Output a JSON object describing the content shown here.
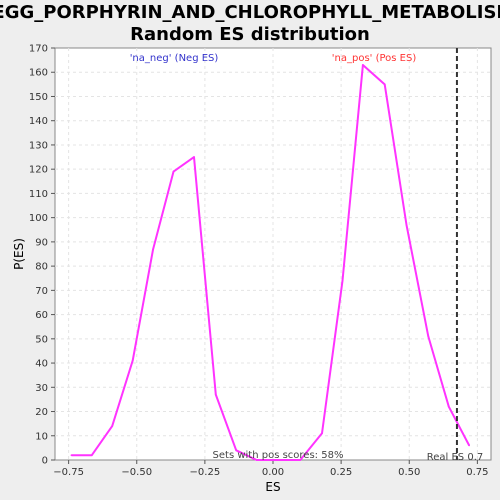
{
  "chart_data": {
    "type": "line",
    "title_line1": "KEGG_PORPHYRIN_AND_CHLOROPHYLL_METABOLISM:",
    "title_line2": "Random ES distribution",
    "xlabel": "ES",
    "ylabel": "P(ES)",
    "xlim": [
      -0.8,
      0.8
    ],
    "ylim": [
      0,
      170
    ],
    "xticks": [
      -0.75,
      -0.5,
      -0.25,
      0.0,
      0.25,
      0.5,
      0.75
    ],
    "xtick_labels": [
      "−0.75",
      "−0.50",
      "−0.25",
      "0.00",
      "0.25",
      "0.50",
      "0.75"
    ],
    "yticks": [
      0,
      10,
      20,
      30,
      40,
      50,
      60,
      70,
      80,
      90,
      100,
      110,
      120,
      130,
      140,
      150,
      160,
      170
    ],
    "series": [
      {
        "name": "P(ES)",
        "color": "#ff33ff",
        "x": [
          -0.74,
          -0.665,
          -0.59,
          -0.515,
          -0.44,
          -0.365,
          -0.29,
          -0.21,
          -0.135,
          -0.06,
          0.02,
          0.1,
          0.18,
          0.255,
          0.33,
          0.41,
          0.49,
          0.57,
          0.645,
          0.72
        ],
        "y": [
          2,
          2,
          14,
          41,
          87,
          119,
          125,
          27,
          4,
          0,
          0,
          0,
          11,
          74,
          163,
          155,
          97,
          51,
          22,
          6
        ]
      }
    ],
    "legend": {
      "neg_label": "'na_neg' (Neg ES)",
      "neg_color": "#3333cc",
      "pos_label": "'na_pos' (Pos ES)",
      "pos_color": "#ff3333"
    },
    "real_es": {
      "value": 0.675,
      "label": "Real ES 0.7",
      "color": "#333333"
    },
    "annotation": "Sets with pos scores: 58%",
    "grid": true
  }
}
